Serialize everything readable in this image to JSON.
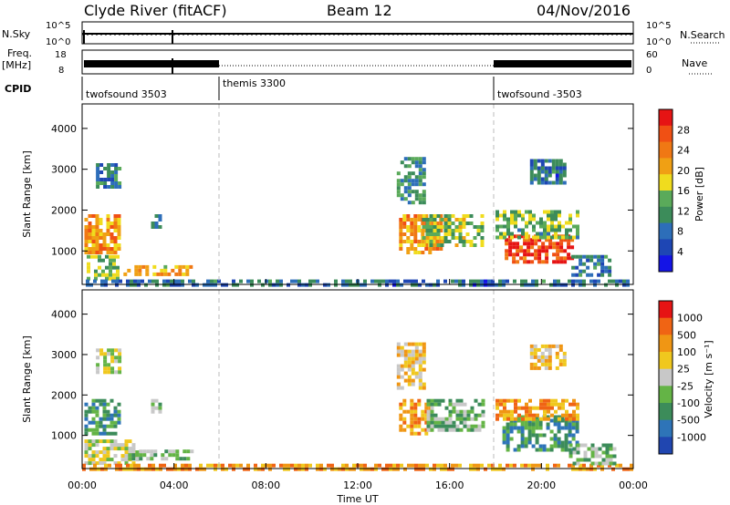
{
  "header": {
    "title": "Clyde River (fitACF)",
    "beam": "Beam 12",
    "date": "04/Nov/2016"
  },
  "top_panel": {
    "left_label": "N.Sky",
    "left_ticks": [
      "10^5",
      "10^0"
    ],
    "right_ticks": [
      "10^5",
      "10^0"
    ],
    "right_label": "N.Search"
  },
  "freq_panel": {
    "left_label_1": "Freq.",
    "left_label_2": "[MHz]",
    "left_ticks": [
      "18",
      "8"
    ],
    "right_ticks": [
      "60",
      "0"
    ],
    "right_label": "Nave"
  },
  "cpid": {
    "label": "CPID",
    "segments": [
      {
        "name": "twofsound 3503",
        "start_h": 0
      },
      {
        "name": "themis 3300",
        "start_h": 6
      },
      {
        "name": "twofsound -3503",
        "start_h": 18
      }
    ]
  },
  "colors": {
    "power": [
      "#1414e6",
      "#1e46b4",
      "#2d6eb9",
      "#3c8c5a",
      "#5aaa5a",
      "#f0dc1e",
      "#f0a014",
      "#f07814",
      "#f05014",
      "#e61414"
    ],
    "velocity": [
      "#2046b0",
      "#2e74b8",
      "#3c8c5a",
      "#64b446",
      "#c8c8c8",
      "#f0c81e",
      "#f09614",
      "#f06414",
      "#e61414"
    ]
  },
  "chart_data": [
    {
      "type": "heatmap",
      "title": "Power",
      "ylabel": "Slant Range [km]",
      "ylim": [
        180,
        4600
      ],
      "xlim": [
        0,
        24
      ],
      "y_ticks": [
        "1000",
        "2000",
        "3000",
        "4000"
      ],
      "colorbar_label": "Power [dB]",
      "colorbar_ticks": [
        "28",
        "24",
        "20",
        "16",
        "12",
        "8",
        "4"
      ],
      "colorbar_range": [
        0,
        32
      ],
      "regions": [
        {
          "t": [
            0.1,
            1.6
          ],
          "r": [
            1000,
            1900
          ],
          "v": 22
        },
        {
          "t": [
            0.2,
            1.5
          ],
          "r": [
            300,
            900
          ],
          "v": 14
        },
        {
          "t": [
            0.6,
            1.6
          ],
          "r": [
            2600,
            3150
          ],
          "v": 10
        },
        {
          "t": [
            1.8,
            4.8
          ],
          "r": [
            400,
            650
          ],
          "v": 20
        },
        {
          "t": [
            3.0,
            3.4
          ],
          "r": [
            1550,
            1900
          ],
          "v": 9
        },
        {
          "t": [
            0.0,
            24.0
          ],
          "r": [
            200,
            300
          ],
          "v": 8
        },
        {
          "t": [
            13.8,
            15.6
          ],
          "r": [
            1000,
            1900
          ],
          "v": 22
        },
        {
          "t": [
            14.8,
            17.5
          ],
          "r": [
            1150,
            1900
          ],
          "v": 15
        },
        {
          "t": [
            13.7,
            14.9
          ],
          "r": [
            2200,
            3300
          ],
          "v": 11
        },
        {
          "t": [
            18.4,
            21.4
          ],
          "r": [
            750,
            1400
          ],
          "v": 27
        },
        {
          "t": [
            18.0,
            21.5
          ],
          "r": [
            1350,
            2000
          ],
          "v": 14
        },
        {
          "t": [
            21.3,
            23.0
          ],
          "r": [
            400,
            900
          ],
          "v": 9
        },
        {
          "t": [
            19.5,
            21.0
          ],
          "r": [
            2700,
            3250
          ],
          "v": 8
        }
      ]
    },
    {
      "type": "heatmap",
      "title": "Velocity",
      "ylabel": "Slant Range [km]",
      "xlabel": "Time UT",
      "ylim": [
        180,
        4600
      ],
      "xlim": [
        0,
        24
      ],
      "x_ticks": [
        "00:00",
        "04:00",
        "08:00",
        "12:00",
        "16:00",
        "20:00",
        "00:00"
      ],
      "y_ticks": [
        "1000",
        "2000",
        "3000",
        "4000"
      ],
      "colorbar_label": "Velocity [m s⁻¹]",
      "colorbar_ticks": [
        "1000",
        "500",
        "100",
        "25",
        "-25",
        "-100",
        "-500",
        "-1000"
      ],
      "regions": [
        {
          "t": [
            0.1,
            1.6
          ],
          "r": [
            1000,
            1900
          ],
          "v": 2
        },
        {
          "t": [
            0.1,
            2.4
          ],
          "r": [
            300,
            900
          ],
          "v": 4
        },
        {
          "t": [
            0.6,
            1.6
          ],
          "r": [
            2600,
            3150
          ],
          "v": 4
        },
        {
          "t": [
            2.0,
            4.8
          ],
          "r": [
            400,
            650
          ],
          "v": 3
        },
        {
          "t": [
            3.0,
            3.4
          ],
          "r": [
            1550,
            1900
          ],
          "v": 3
        },
        {
          "t": [
            0.0,
            24.0
          ],
          "r": [
            200,
            300
          ],
          "v": 6
        },
        {
          "t": [
            13.8,
            15.2
          ],
          "r": [
            1000,
            1900
          ],
          "v": 6
        },
        {
          "t": [
            15.0,
            17.5
          ],
          "r": [
            1100,
            1900
          ],
          "v": 3
        },
        {
          "t": [
            13.7,
            14.9
          ],
          "r": [
            2200,
            3300
          ],
          "v": 5
        },
        {
          "t": [
            18.3,
            21.5
          ],
          "r": [
            600,
            1500
          ],
          "v": 2
        },
        {
          "t": [
            18.0,
            21.5
          ],
          "r": [
            1400,
            1900
          ],
          "v": 6
        },
        {
          "t": [
            21.2,
            23.2
          ],
          "r": [
            300,
            800
          ],
          "v": 3
        },
        {
          "t": [
            19.5,
            21.0
          ],
          "r": [
            2700,
            3250
          ],
          "v": 5
        }
      ]
    }
  ]
}
